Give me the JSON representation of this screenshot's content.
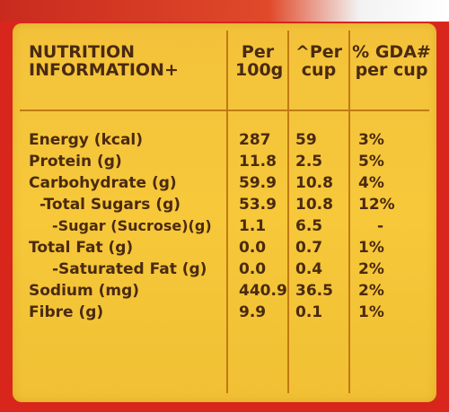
{
  "header": {
    "col0_line1": "NUTRITION",
    "col0_line2": "INFORMATION+",
    "col1_line1": "Per",
    "col1_line2": "100g",
    "col2_line1": "^Per",
    "col2_line2": "cup",
    "col3_line1": "% GDA#",
    "col3_line2": "per cup"
  },
  "rows": [
    {
      "label": "Energy (kcal)",
      "per100g": "287",
      "percup": "59",
      "gda": "3%"
    },
    {
      "label": "Protein (g)",
      "per100g": "11.8",
      "percup": "2.5",
      "gda": "5%"
    },
    {
      "label": "Carbohydrate (g)",
      "per100g": "59.9",
      "percup": "10.8",
      "gda": "4%"
    },
    {
      "label": "-Total Sugars (g)",
      "per100g": "53.9",
      "percup": "10.8",
      "gda": "12%"
    },
    {
      "label": "-Sugar (Sucrose)(g)",
      "per100g": "1.1",
      "percup": "6.5",
      "gda": "-"
    },
    {
      "label": "Total Fat (g)",
      "per100g": "0.0",
      "percup": "0.7",
      "gda": "1%"
    },
    {
      "label": "-Saturated Fat (g)",
      "per100g": "0.0",
      "percup": "0.4",
      "gda": "2%"
    },
    {
      "label": "Sodium (mg)",
      "per100g": "440.9",
      "percup": "36.5",
      "gda": "2%"
    },
    {
      "label": "Fibre (g)",
      "per100g": "9.9",
      "percup": "0.1",
      "gda": "1%"
    }
  ],
  "colors": {
    "panel": "#f4c43a",
    "text": "#4a2a10",
    "background": "#d9261c"
  }
}
